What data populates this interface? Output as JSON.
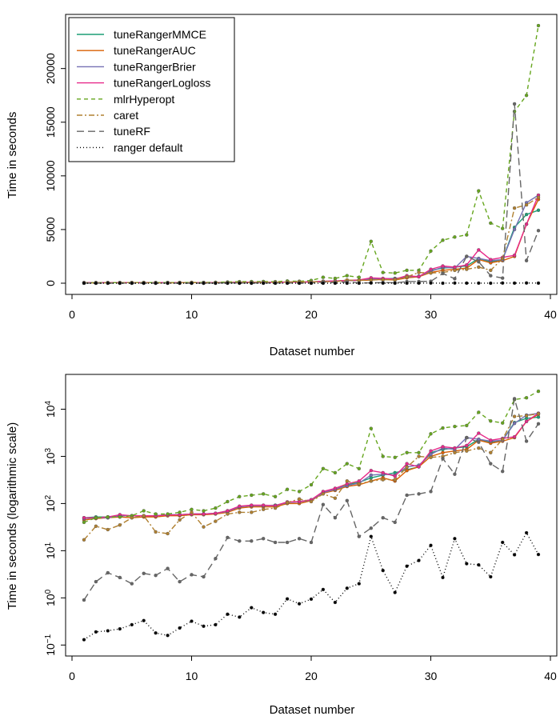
{
  "chart_data": [
    {
      "type": "line",
      "scale": "linear",
      "xlabel": "Dataset number",
      "ylabel": "Time in seconds",
      "xlim": [
        0,
        40
      ],
      "ylim": [
        0,
        24000
      ],
      "xticks": [
        "0",
        "10",
        "20",
        "30",
        "40"
      ],
      "yticks": [
        "0",
        "5000",
        "10000",
        "15000",
        "20000"
      ],
      "grid": false,
      "legend_position": "top-left",
      "x": [
        1,
        2,
        3,
        4,
        5,
        6,
        7,
        8,
        9,
        10,
        11,
        12,
        13,
        14,
        15,
        16,
        17,
        18,
        19,
        20,
        21,
        22,
        23,
        24,
        25,
        26,
        27,
        28,
        29,
        30,
        31,
        32,
        33,
        34,
        35,
        36,
        37,
        38,
        39
      ],
      "series": [
        {
          "name": "tuneRangerMMCE",
          "color": "#1b9e77",
          "dash": "",
          "values": [
            50,
            52,
            52,
            55,
            55,
            55,
            55,
            58,
            58,
            60,
            60,
            62,
            70,
            85,
            90,
            90,
            92,
            105,
            110,
            120,
            175,
            200,
            250,
            280,
            350,
            400,
            450,
            520,
            600,
            1200,
            1400,
            1500,
            1600,
            2300,
            2000,
            2200,
            5200,
            6400,
            6800
          ]
        },
        {
          "name": "tuneRangerAUC",
          "color": "#d95f02",
          "dash": "",
          "values": [
            45,
            48,
            50,
            52,
            50,
            52,
            52,
            55,
            55,
            58,
            58,
            60,
            65,
            80,
            85,
            85,
            85,
            100,
            100,
            115,
            165,
            190,
            230,
            250,
            300,
            350,
            300,
            500,
            600,
            1000,
            1200,
            1300,
            1400,
            2200,
            1900,
            2100,
            2500,
            5500,
            7800
          ]
        },
        {
          "name": "tuneRangerBrier",
          "color": "#7570b3",
          "dash": "",
          "values": [
            48,
            50,
            50,
            55,
            55,
            55,
            55,
            58,
            58,
            60,
            60,
            62,
            68,
            85,
            90,
            90,
            90,
            105,
            108,
            118,
            170,
            200,
            240,
            270,
            400,
            420,
            400,
            600,
            650,
            1100,
            1500,
            1400,
            2500,
            2300,
            2100,
            2200,
            5000,
            7500,
            8200
          ]
        },
        {
          "name": "tuneRangerLogloss",
          "color": "#e7298a",
          "dash": "",
          "values": [
            50,
            50,
            52,
            58,
            55,
            55,
            55,
            57,
            58,
            60,
            60,
            62,
            70,
            88,
            92,
            92,
            90,
            108,
            110,
            120,
            180,
            210,
            260,
            300,
            500,
            450,
            380,
            700,
            600,
            1300,
            1600,
            1500,
            1700,
            3100,
            2200,
            2400,
            2600,
            5500,
            8200
          ]
        },
        {
          "name": "mlrHyperopt",
          "color": "#66a61e",
          "dash": "5,4",
          "values": [
            40,
            50,
            52,
            52,
            55,
            70,
            60,
            60,
            65,
            75,
            70,
            80,
            110,
            140,
            150,
            160,
            140,
            200,
            180,
            250,
            550,
            450,
            700,
            550,
            3900,
            1000,
            950,
            1200,
            1200,
            3000,
            4000,
            4300,
            4500,
            8600,
            5600,
            5100,
            16000,
            17500,
            24000
          ]
        },
        {
          "name": "caret",
          "color": "#b08030",
          "dash": "7,3,2,3",
          "values": [
            17,
            33,
            28,
            35,
            50,
            55,
            25,
            23,
            45,
            65,
            32,
            42,
            60,
            65,
            65,
            75,
            80,
            105,
            125,
            110,
            160,
            130,
            300,
            260,
            300,
            320,
            320,
            590,
            1000,
            950,
            1000,
            1200,
            1300,
            1500,
            1200,
            2300,
            7000,
            7300,
            8000
          ]
        },
        {
          "name": "tuneRF",
          "color": "#666666",
          "dash": "9,5",
          "values": [
            0.9,
            2.2,
            3.4,
            2.7,
            2.0,
            3.3,
            3.0,
            4.2,
            2.2,
            3.1,
            2.8,
            6.8,
            19,
            16,
            16,
            18,
            15,
            15,
            18,
            15,
            95,
            50,
            115,
            20,
            30,
            50,
            40,
            150,
            160,
            180,
            900,
            420,
            2500,
            2000,
            700,
            480,
            16700,
            2100,
            4900
          ]
        },
        {
          "name": "ranger default",
          "color": "#000000",
          "dash": "1,3",
          "values": [
            0.13,
            0.19,
            0.2,
            0.22,
            0.27,
            0.33,
            0.18,
            0.16,
            0.23,
            0.32,
            0.25,
            0.27,
            0.45,
            0.39,
            0.62,
            0.49,
            0.45,
            0.95,
            0.75,
            0.94,
            1.5,
            0.8,
            1.6,
            2.0,
            20,
            3.8,
            1.3,
            4.7,
            6.2,
            13,
            2.7,
            18,
            5.3,
            5.0,
            2.8,
            15,
            8.2,
            24,
            8.3
          ]
        }
      ]
    },
    {
      "type": "line",
      "scale": "log",
      "xlabel": "Dataset number",
      "ylabel": "Time in seconds (logarithmic scale)",
      "xlim": [
        0,
        40
      ],
      "ylim": [
        0.08,
        40000
      ],
      "xticks": [
        "0",
        "10",
        "20",
        "30",
        "40"
      ],
      "yticks": [
        {
          "base": "10",
          "exp": "−1",
          "value": 0.1
        },
        {
          "base": "10",
          "exp": "0",
          "value": 1
        },
        {
          "base": "10",
          "exp": "1",
          "value": 10
        },
        {
          "base": "10",
          "exp": "2",
          "value": 100
        },
        {
          "base": "10",
          "exp": "3",
          "value": 1000
        },
        {
          "base": "10",
          "exp": "4",
          "value": 10000
        }
      ],
      "grid": false,
      "legend_position": "none",
      "series_ref": "same as first chart"
    }
  ]
}
